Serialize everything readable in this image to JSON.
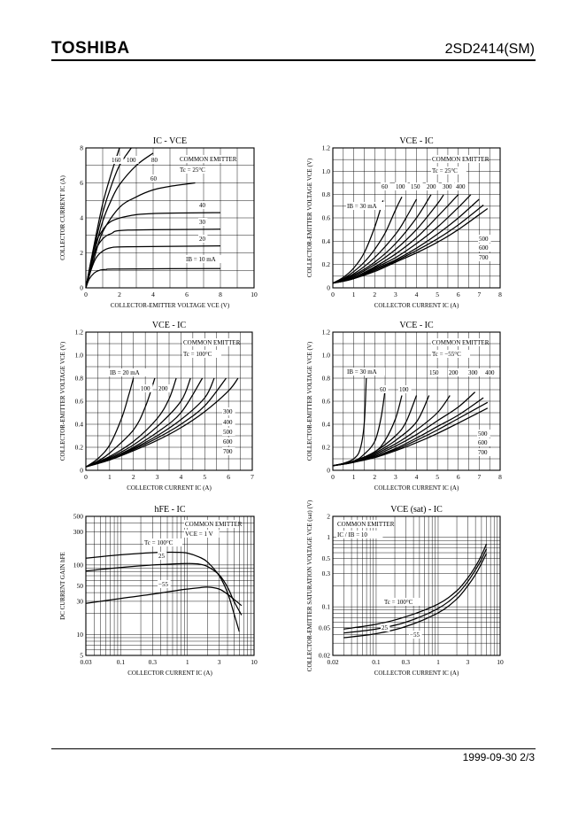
{
  "header": {
    "brand": "TOSHIBA",
    "part_number": "2SD2414(SM)"
  },
  "footer": {
    "text": "1999-09-30   2/3"
  },
  "chart_data": [
    {
      "id": "c1",
      "type": "line",
      "title": "IC - VCE",
      "xlabel": "COLLECTOR-EMITTER VOLTAGE  VCE  (V)",
      "ylabel": "COLLECTOR CURRENT  IC  (A)",
      "xlim": [
        0,
        10
      ],
      "ylim": [
        0,
        8
      ],
      "xticks": [
        "0",
        "2",
        "4",
        "6",
        "8",
        "10"
      ],
      "yticks": [
        "0",
        "2",
        "4",
        "6",
        "8"
      ],
      "grid": true,
      "annotations": [
        "COMMON EMITTER",
        "Tc = 25°C",
        "IB = 10 mA",
        "160",
        "100",
        "80",
        "60",
        "40",
        "30",
        "20"
      ],
      "series": [
        {
          "name": "160",
          "x": [
            0,
            0.5,
            1,
            1.5,
            2
          ],
          "y": [
            0,
            2.5,
            4.8,
            6.5,
            8.0
          ]
        },
        {
          "name": "100",
          "x": [
            0,
            0.5,
            1,
            1.5,
            2,
            2.7
          ],
          "y": [
            0,
            2.3,
            4.3,
            5.8,
            7.0,
            8.0
          ]
        },
        {
          "name": "80",
          "x": [
            0,
            0.5,
            1,
            1.5,
            2,
            3,
            4
          ],
          "y": [
            0,
            2.0,
            3.8,
            5.0,
            5.9,
            7.0,
            7.7
          ]
        },
        {
          "name": "60",
          "x": [
            0,
            0.5,
            1,
            2,
            3,
            4,
            5,
            6.5
          ],
          "y": [
            0,
            1.7,
            3.2,
            4.6,
            5.2,
            5.6,
            5.8,
            6.0
          ]
        },
        {
          "name": "40",
          "x": [
            0,
            0.3,
            0.6,
            1,
            1.5,
            2.5,
            4,
            8
          ],
          "y": [
            0,
            1.5,
            2.6,
            3.3,
            3.8,
            4.1,
            4.25,
            4.3
          ]
        },
        {
          "name": "30",
          "x": [
            0,
            0.3,
            0.6,
            1,
            1.5,
            2.5,
            8
          ],
          "y": [
            0,
            1.3,
            2.2,
            2.8,
            3.1,
            3.3,
            3.35
          ]
        },
        {
          "name": "20",
          "x": [
            0,
            0.3,
            0.6,
            1,
            1.5,
            2.5,
            8
          ],
          "y": [
            0,
            1.0,
            1.7,
            2.1,
            2.3,
            2.35,
            2.4
          ]
        },
        {
          "name": "10",
          "x": [
            0,
            0.2,
            0.5,
            0.8,
            1.2,
            2,
            8
          ],
          "y": [
            0,
            0.5,
            0.85,
            1.0,
            1.05,
            1.08,
            1.1
          ]
        }
      ]
    },
    {
      "id": "c2",
      "type": "line",
      "title": "VCE - IC",
      "xlabel": "COLLECTOR CURRENT  IC  (A)",
      "ylabel": "COLLECTOR-EMITTER VOLTAGE  VCE  (V)",
      "xlim": [
        0,
        8
      ],
      "ylim": [
        0,
        1.2
      ],
      "xticks": [
        "0",
        "1",
        "2",
        "3",
        "4",
        "5",
        "6",
        "7",
        "8"
      ],
      "yticks": [
        "0",
        "0.2",
        "0.4",
        "0.6",
        "0.8",
        "1.0",
        "1.2"
      ],
      "grid": true,
      "annotations": [
        "COMMON EMITTER",
        "Tc = 25°C",
        "IB = 30 mA",
        "60",
        "100",
        "150",
        "200",
        "300",
        "400",
        "500",
        "600",
        "700"
      ],
      "series": [
        {
          "name": "30",
          "x": [
            0,
            0.5,
            1,
            1.5,
            2,
            2.4
          ],
          "y": [
            0.04,
            0.09,
            0.17,
            0.3,
            0.52,
            0.75
          ]
        },
        {
          "name": "60",
          "x": [
            0,
            0.5,
            1,
            1.5,
            2,
            2.5,
            3,
            3.3
          ],
          "y": [
            0.04,
            0.08,
            0.14,
            0.22,
            0.33,
            0.47,
            0.67,
            0.78
          ]
        },
        {
          "name": "100",
          "x": [
            0,
            1,
            2,
            3,
            3.5,
            4
          ],
          "y": [
            0.04,
            0.12,
            0.26,
            0.46,
            0.6,
            0.76
          ]
        },
        {
          "name": "150",
          "x": [
            0,
            1,
            2,
            3,
            4,
            4.7
          ],
          "y": [
            0.04,
            0.11,
            0.22,
            0.38,
            0.6,
            0.8
          ]
        },
        {
          "name": "200",
          "x": [
            0,
            1,
            2,
            3,
            4,
            5,
            5.3
          ],
          "y": [
            0.04,
            0.1,
            0.2,
            0.33,
            0.5,
            0.72,
            0.8
          ]
        },
        {
          "name": "300",
          "x": [
            0,
            1,
            2,
            3,
            4,
            5,
            6
          ],
          "y": [
            0.04,
            0.09,
            0.18,
            0.29,
            0.43,
            0.61,
            0.8
          ]
        },
        {
          "name": "400",
          "x": [
            0,
            1,
            2,
            3,
            4,
            5,
            6,
            6.6
          ],
          "y": [
            0.04,
            0.08,
            0.17,
            0.26,
            0.38,
            0.52,
            0.69,
            0.8
          ]
        },
        {
          "name": "500",
          "x": [
            0,
            1,
            2,
            3,
            4,
            5,
            6,
            7
          ],
          "y": [
            0.04,
            0.08,
            0.16,
            0.24,
            0.34,
            0.46,
            0.6,
            0.76
          ]
        },
        {
          "name": "600",
          "x": [
            0,
            1,
            2,
            3,
            4,
            5,
            6,
            7.2
          ],
          "y": [
            0.04,
            0.08,
            0.15,
            0.23,
            0.32,
            0.42,
            0.54,
            0.71
          ]
        },
        {
          "name": "700",
          "x": [
            0,
            1,
            2,
            3,
            4,
            5,
            6,
            7.4
          ],
          "y": [
            0.04,
            0.08,
            0.14,
            0.22,
            0.3,
            0.39,
            0.5,
            0.68
          ]
        }
      ]
    },
    {
      "id": "c3",
      "type": "line",
      "title": "VCE - IC",
      "xlabel": "COLLECTOR CURRENT  IC  (A)",
      "ylabel": "COLLECTOR-EMITTER VOLTAGE  VCE  (V)",
      "xlim": [
        0,
        7
      ],
      "ylim": [
        0,
        1.2
      ],
      "xticks": [
        "0",
        "1",
        "2",
        "3",
        "4",
        "5",
        "6",
        "7"
      ],
      "yticks": [
        "0",
        "0.2",
        "0.4",
        "0.6",
        "0.8",
        "1.0",
        "1.2"
      ],
      "grid": true,
      "annotations": [
        "COMMON EMITTER",
        "Tc = 100°C",
        "IB = 20 mA",
        "100",
        "200",
        "300",
        "400",
        "500",
        "600",
        "700"
      ],
      "series": [
        {
          "name": "20",
          "x": [
            0,
            0.5,
            1,
            1.5,
            1.8,
            2.0
          ],
          "y": [
            0.03,
            0.1,
            0.22,
            0.45,
            0.65,
            0.8
          ]
        },
        {
          "name": "100",
          "x": [
            0,
            0.5,
            1,
            2,
            2.5,
            2.9
          ],
          "y": [
            0.03,
            0.08,
            0.15,
            0.35,
            0.55,
            0.8
          ]
        },
        {
          "name": "200",
          "x": [
            0,
            1,
            2,
            3,
            3.5,
            3.8
          ],
          "y": [
            0.03,
            0.12,
            0.25,
            0.45,
            0.62,
            0.8
          ]
        },
        {
          "name": "300",
          "x": [
            0,
            1,
            2,
            3,
            4,
            4.4
          ],
          "y": [
            0.03,
            0.11,
            0.22,
            0.38,
            0.6,
            0.8
          ]
        },
        {
          "name": "400",
          "x": [
            0,
            1,
            2,
            3,
            4,
            4.9
          ],
          "y": [
            0.03,
            0.1,
            0.2,
            0.33,
            0.5,
            0.8
          ]
        },
        {
          "name": "500",
          "x": [
            0,
            1,
            2,
            3,
            4,
            5,
            5.4
          ],
          "y": [
            0.03,
            0.1,
            0.19,
            0.3,
            0.44,
            0.63,
            0.8
          ]
        },
        {
          "name": "600",
          "x": [
            0,
            1,
            2,
            3,
            4,
            5,
            5.9
          ],
          "y": [
            0.03,
            0.09,
            0.18,
            0.28,
            0.4,
            0.56,
            0.8
          ]
        },
        {
          "name": "700",
          "x": [
            0,
            1,
            2,
            3,
            4,
            5,
            6,
            6.4
          ],
          "y": [
            0.03,
            0.09,
            0.17,
            0.26,
            0.37,
            0.51,
            0.69,
            0.8
          ]
        }
      ]
    },
    {
      "id": "c4",
      "type": "line",
      "title": "VCE - IC",
      "xlabel": "COLLECTOR CURRENT  IC  (A)",
      "ylabel": "COLLECTOR-EMITTER VOLTAGE  VCE  (V)",
      "xlim": [
        0,
        8
      ],
      "ylim": [
        0,
        1.2
      ],
      "xticks": [
        "0",
        "1",
        "2",
        "3",
        "4",
        "5",
        "6",
        "7",
        "8"
      ],
      "yticks": [
        "0",
        "0.2",
        "0.4",
        "0.6",
        "0.8",
        "1.0",
        "1.2"
      ],
      "grid": true,
      "annotations": [
        "COMMON EMITTER",
        "Tc = −55°C",
        "IB = 30 mA",
        "60",
        "100",
        "150",
        "200",
        "300",
        "400",
        "500",
        "600",
        "700"
      ],
      "series": [
        {
          "name": "30",
          "x": [
            0,
            0.5,
            1,
            1.3,
            1.5,
            1.6
          ],
          "y": [
            0.04,
            0.06,
            0.1,
            0.18,
            0.4,
            0.8
          ]
        },
        {
          "name": "60",
          "x": [
            0,
            1,
            1.5,
            2,
            2.3,
            2.5
          ],
          "y": [
            0.04,
            0.08,
            0.14,
            0.25,
            0.45,
            0.7
          ]
        },
        {
          "name": "100",
          "x": [
            0,
            1,
            2,
            2.5,
            3,
            3.3
          ],
          "y": [
            0.04,
            0.08,
            0.16,
            0.26,
            0.45,
            0.65
          ]
        },
        {
          "name": "150",
          "x": [
            0,
            1,
            2,
            3,
            3.5,
            4
          ],
          "y": [
            0.04,
            0.08,
            0.16,
            0.3,
            0.42,
            0.65
          ]
        },
        {
          "name": "200",
          "x": [
            0,
            1,
            2,
            3,
            4,
            4.6
          ],
          "y": [
            0.04,
            0.08,
            0.15,
            0.26,
            0.42,
            0.65
          ]
        },
        {
          "name": "300",
          "x": [
            0,
            1,
            2,
            3,
            4,
            5,
            5.6
          ],
          "y": [
            0.04,
            0.07,
            0.14,
            0.23,
            0.35,
            0.5,
            0.65
          ]
        },
        {
          "name": "400",
          "x": [
            0,
            1,
            2,
            3,
            4,
            5,
            6,
            6.8
          ],
          "y": [
            0.04,
            0.07,
            0.13,
            0.21,
            0.31,
            0.43,
            0.55,
            0.68
          ]
        },
        {
          "name": "500",
          "x": [
            0,
            1,
            2,
            3,
            4,
            5,
            6,
            7.2
          ],
          "y": [
            0.04,
            0.07,
            0.12,
            0.19,
            0.28,
            0.38,
            0.48,
            0.63
          ]
        },
        {
          "name": "600",
          "x": [
            0,
            1,
            2,
            3,
            4,
            5,
            6,
            7.4
          ],
          "y": [
            0.04,
            0.07,
            0.12,
            0.18,
            0.26,
            0.35,
            0.45,
            0.59
          ]
        },
        {
          "name": "700",
          "x": [
            0,
            1,
            2,
            3,
            4,
            5,
            6,
            7.4
          ],
          "y": [
            0.04,
            0.07,
            0.11,
            0.17,
            0.24,
            0.32,
            0.41,
            0.54
          ]
        }
      ]
    },
    {
      "id": "c5",
      "type": "line",
      "title": "hFE - IC",
      "xlabel": "COLLECTOR CURRENT  IC  (A)",
      "ylabel": "DC CURRENT GAIN  hFE",
      "xscale": "log",
      "yscale": "log",
      "xlim": [
        0.03,
        10
      ],
      "ylim": [
        5,
        500
      ],
      "xticks": [
        "0.03",
        "0.1",
        "0.3",
        "1",
        "3",
        "10"
      ],
      "yticks": [
        "5",
        "10",
        "30",
        "50",
        "100",
        "300",
        "500"
      ],
      "grid": true,
      "annotations": [
        "COMMON EMITTER",
        "VCE = 1 V",
        "Tc = 100°C",
        "25",
        "−55"
      ],
      "series": [
        {
          "name": "100",
          "x": [
            0.03,
            0.1,
            0.3,
            0.7,
            1,
            1.5,
            2,
            3,
            4,
            5,
            6
          ],
          "y": [
            125,
            140,
            150,
            152,
            148,
            130,
            110,
            70,
            40,
            20,
            11
          ]
        },
        {
          "name": "25",
          "x": [
            0.03,
            0.1,
            0.3,
            0.7,
            1,
            1.5,
            2,
            3,
            4,
            5,
            6.5
          ],
          "y": [
            82,
            92,
            100,
            104,
            105,
            103,
            95,
            72,
            48,
            30,
            19
          ]
        },
        {
          "name": "-55",
          "x": [
            0.03,
            0.1,
            0.3,
            0.7,
            1,
            1.5,
            2,
            3,
            4,
            5,
            6.5
          ],
          "y": [
            28,
            33,
            38,
            43,
            45,
            47,
            48,
            45,
            38,
            32,
            26
          ]
        }
      ]
    },
    {
      "id": "c6",
      "type": "line",
      "title": "VCE (sat) - IC",
      "xlabel": "COLLECTOR CURRENT  IC  (A)",
      "ylabel": "COLLECTOR-EMITTER SATURATION VOLTAGE  VCE (sat)  (V)",
      "xscale": "log",
      "yscale": "log",
      "xlim": [
        0.02,
        10
      ],
      "ylim": [
        0.02,
        2
      ],
      "xticks": [
        "0.02",
        "0.1",
        "0.3",
        "1",
        "3",
        "10"
      ],
      "yticks": [
        "0.02",
        "0.05",
        "0.1",
        "0.3",
        "0.5",
        "1",
        "2"
      ],
      "grid": true,
      "annotations": [
        "COMMON EMITTER",
        "IC / IB = 10",
        "Tc = 100°C",
        "25",
        "−55"
      ],
      "series": [
        {
          "name": "100",
          "x": [
            0.03,
            0.1,
            0.3,
            1,
            2,
            3,
            4,
            5,
            6
          ],
          "y": [
            0.048,
            0.056,
            0.072,
            0.11,
            0.17,
            0.26,
            0.38,
            0.55,
            0.8
          ]
        },
        {
          "name": "25",
          "x": [
            0.03,
            0.1,
            0.3,
            1,
            2,
            3,
            4,
            5,
            6
          ],
          "y": [
            0.042,
            0.048,
            0.06,
            0.095,
            0.15,
            0.23,
            0.34,
            0.48,
            0.68
          ]
        },
        {
          "name": "-55",
          "x": [
            0.03,
            0.1,
            0.3,
            1,
            2,
            3,
            4,
            5,
            6
          ],
          "y": [
            0.036,
            0.041,
            0.052,
            0.082,
            0.13,
            0.2,
            0.29,
            0.42,
            0.58
          ]
        }
      ]
    }
  ]
}
